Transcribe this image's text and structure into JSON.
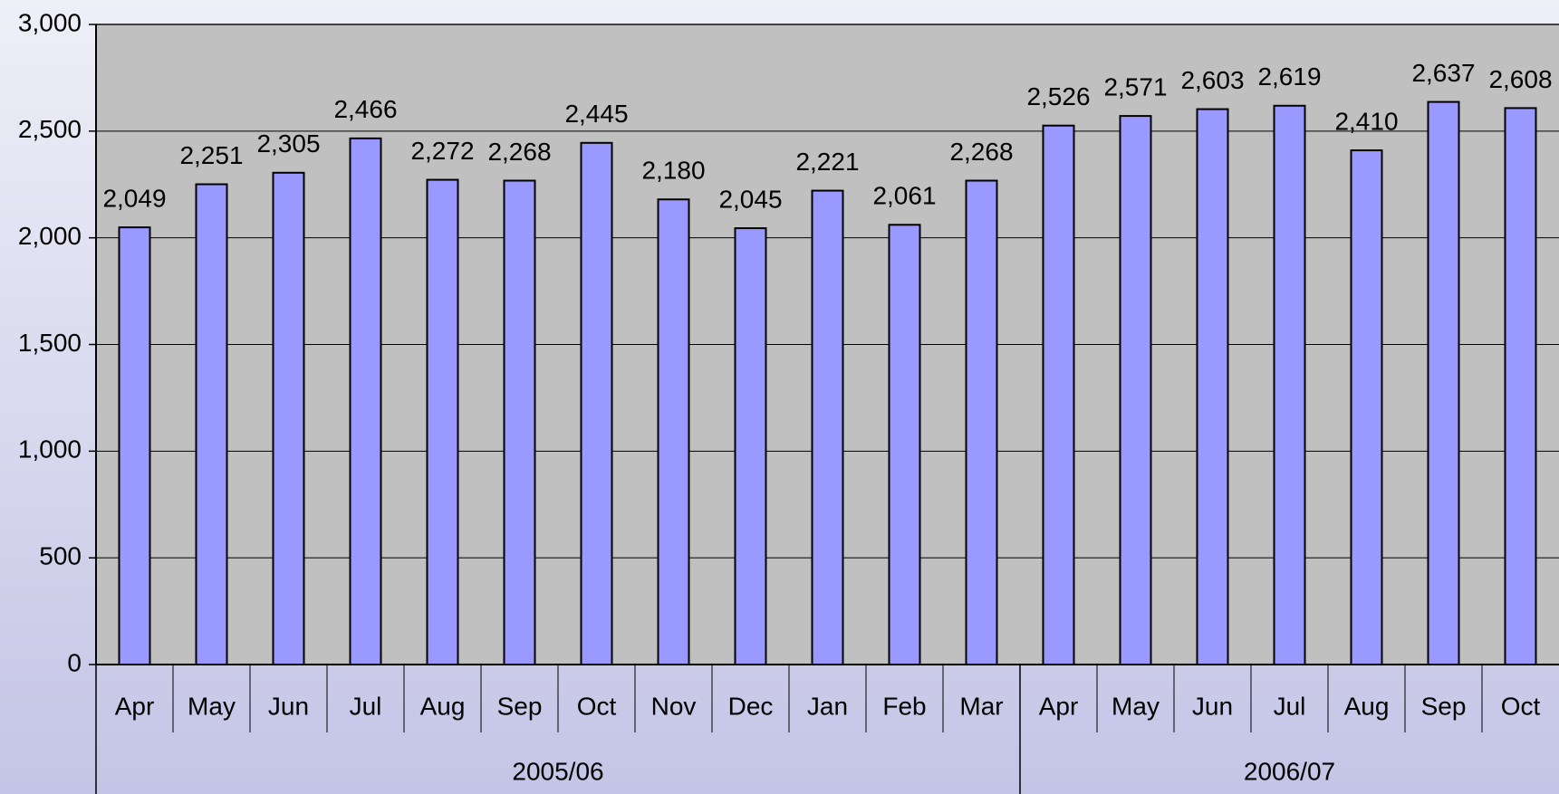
{
  "chart_data": {
    "type": "bar",
    "groups": [
      {
        "name": "2005/06",
        "categories": [
          "Apr",
          "May",
          "Jun",
          "Jul",
          "Aug",
          "Sep",
          "Oct",
          "Nov",
          "Dec",
          "Jan",
          "Feb",
          "Mar"
        ],
        "values": [
          2049,
          2251,
          2305,
          2466,
          2272,
          2268,
          2445,
          2180,
          2045,
          2221,
          2061,
          2268
        ],
        "value_labels": [
          "2,049",
          "2,251",
          "2,305",
          "2,466",
          "2,272",
          "2,268",
          "2,445",
          "2,180",
          "2,045",
          "2,221",
          "2,061",
          "2,268"
        ]
      },
      {
        "name": "2006/07",
        "categories": [
          "Apr",
          "May",
          "Jun",
          "Jul",
          "Aug",
          "Sep",
          "Oct"
        ],
        "values": [
          2526,
          2571,
          2603,
          2619,
          2410,
          2637,
          2608
        ],
        "value_labels": [
          "2,526",
          "2,571",
          "2,603",
          "2,619",
          "2,410",
          "2,637",
          "2,608"
        ]
      }
    ],
    "color": "#9999ff",
    "ylim": [
      0,
      3000
    ],
    "yticks": [
      0,
      500,
      {
        "value": 1000,
        "label": "1,000"
      },
      {
        "value": 1500,
        "label": "1,500"
      },
      {
        "value": 2000,
        "label": "2,000"
      },
      {
        "value": 2500,
        "label": "2,500"
      },
      {
        "value": 3000,
        "label": "3,000"
      }
    ],
    "grid": true
  }
}
